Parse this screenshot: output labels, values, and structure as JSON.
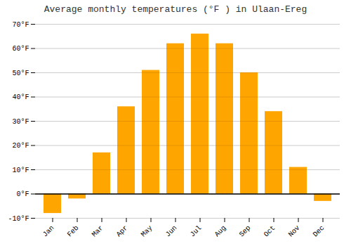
{
  "chart_data": {
    "type": "bar",
    "title": "Average monthly temperatures (°F ) in Ulaan-Ereg",
    "categories": [
      "Jan",
      "Feb",
      "Mar",
      "Apr",
      "May",
      "Jun",
      "Jul",
      "Aug",
      "Sep",
      "Oct",
      "Nov",
      "Dec"
    ],
    "values": [
      -8,
      -2,
      17,
      36,
      51,
      62,
      66,
      62,
      50,
      34,
      11,
      -3
    ],
    "color": "#FFA500",
    "ylim": [
      -10,
      70
    ],
    "yticks": [
      {
        "value": -10,
        "label": "-10°F"
      },
      {
        "value": 0,
        "label": "0°F"
      },
      {
        "value": 10,
        "label": "10°F"
      },
      {
        "value": 20,
        "label": "20°F"
      },
      {
        "value": 30,
        "label": "30°F"
      },
      {
        "value": 40,
        "label": "40°F"
      },
      {
        "value": 50,
        "label": "50°F"
      },
      {
        "value": 60,
        "label": "60°F"
      },
      {
        "value": 70,
        "label": "70°F"
      }
    ],
    "grid": true
  }
}
